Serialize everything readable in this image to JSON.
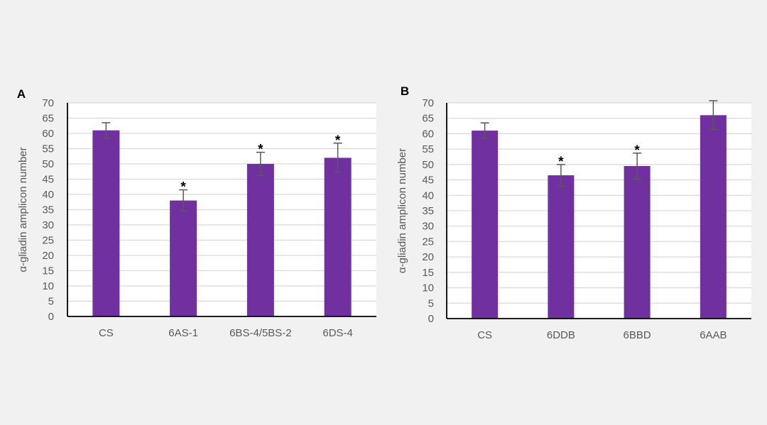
{
  "colors": {
    "bar": "#7030a0",
    "grid": "#d9d9d9",
    "axis": "#000000",
    "error_bar": "#595959",
    "background": "#f1f1f1",
    "plot_background": "#ffffff"
  },
  "chart_data": [
    {
      "panel": "A",
      "type": "bar",
      "ylabel": "α-gliadin amplicon number",
      "ylim": [
        0,
        70
      ],
      "yticks": [
        0,
        5,
        10,
        15,
        20,
        25,
        30,
        35,
        40,
        45,
        50,
        55,
        60,
        65,
        70
      ],
      "grid": true,
      "categories": [
        "CS",
        "6AS-1",
        "6BS-4/5BS-2",
        "6DS-4"
      ],
      "values": [
        61,
        38,
        50,
        52
      ],
      "error": [
        2.5,
        3.5,
        3.8,
        4.8
      ],
      "significance": [
        "",
        "*",
        "*",
        "*"
      ]
    },
    {
      "panel": "B",
      "type": "bar",
      "ylabel": "α-gliadin amplicon number",
      "ylim": [
        0,
        70
      ],
      "yticks": [
        0,
        5,
        10,
        15,
        20,
        25,
        30,
        35,
        40,
        45,
        50,
        55,
        60,
        65,
        70
      ],
      "grid": true,
      "categories": [
        "CS",
        "6DDB",
        "6BBD",
        "6AAB"
      ],
      "values": [
        61,
        46.5,
        49.5,
        66
      ],
      "error": [
        2.5,
        3.5,
        4.2,
        4.7
      ],
      "significance": [
        "",
        "*",
        "*",
        ""
      ]
    }
  ]
}
